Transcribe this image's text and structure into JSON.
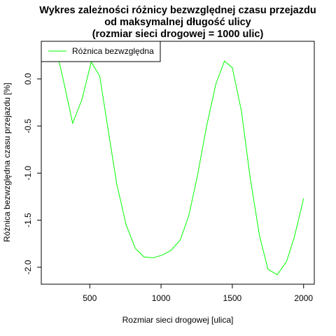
{
  "chart_data": {
    "type": "line",
    "title_lines": [
      "Wykres zależności różnicy bezwzględnej czasu przejazdu",
      "od maksymalnej długość ulicy",
      "(rozmiar sieci drogowej = 1000 ulic)"
    ],
    "xlabel": "Rozmiar sieci drogowej [ulica]",
    "ylabel": "Różnica bezwzględna czasu przejazdu [%]",
    "xlim": [
      160,
      2075
    ],
    "ylim": [
      -2.18,
      0.4
    ],
    "x_ticks": [
      500,
      1000,
      1500,
      2000
    ],
    "y_ticks": [
      0.0,
      -0.5,
      -1.0,
      -1.5,
      -2.0
    ],
    "y_tick_labels": [
      "0.0",
      "-0.5",
      "-1.0",
      "-1.5",
      "-2.0"
    ],
    "grid": false,
    "legend_position": "top-left",
    "series": [
      {
        "name": "Różnica bezwzględna",
        "color": "#00ff00",
        "x": [
          280,
          320,
          380,
          445,
          510,
          570,
          630,
          690,
          755,
          820,
          880,
          945,
          1010,
          1070,
          1135,
          1195,
          1255,
          1320,
          1385,
          1445,
          1500,
          1565,
          1625,
          1690,
          1750,
          1815,
          1880,
          1935,
          2000
        ],
        "y": [
          0.22,
          -0.05,
          -0.47,
          -0.22,
          0.18,
          0.03,
          -0.55,
          -1.12,
          -1.55,
          -1.8,
          -1.89,
          -1.9,
          -1.87,
          -1.82,
          -1.71,
          -1.45,
          -1.03,
          -0.5,
          -0.05,
          0.19,
          0.12,
          -0.35,
          -1.05,
          -1.66,
          -2.02,
          -2.08,
          -1.94,
          -1.68,
          -1.27
        ]
      }
    ]
  }
}
